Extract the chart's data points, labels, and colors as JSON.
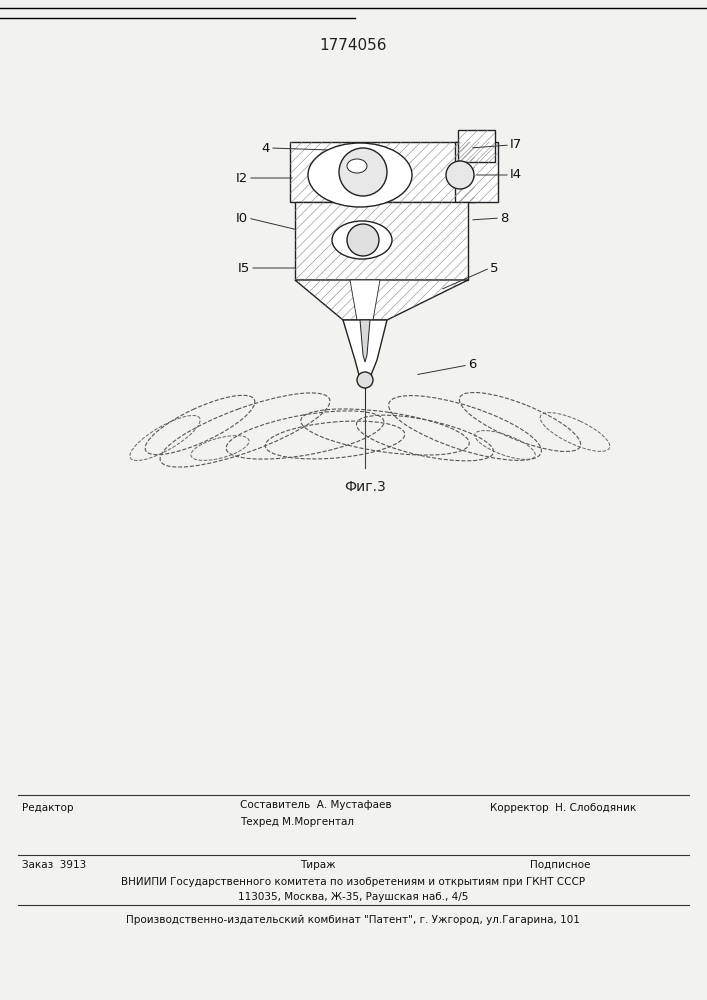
{
  "patent_number": "1774056",
  "fig_label": "Фиг.3",
  "bg_color": "#f2f2ee",
  "footer_line1_left": "Редактор",
  "footer_line1_center1": "Составитель  А. Мустафаев",
  "footer_line1_center2": "Техред М.Моргентал",
  "footer_line1_right": "Корректор  Н. Слободяник",
  "footer_line2_col1": "Заказ  3913",
  "footer_line2_col2": "Тираж",
  "footer_line2_col3": "Подписное",
  "footer_line3": "ВНИИПИ Государственного комитета по изобретениям и открытиям при ГКНТ СССР",
  "footer_line4": "113035, Москва, Ж-35, Раушская наб., 4/5",
  "footer_line5": "Производственно-издательский комбинат \"Патент\", г. Ужгород, ул.Гагарина, 101"
}
